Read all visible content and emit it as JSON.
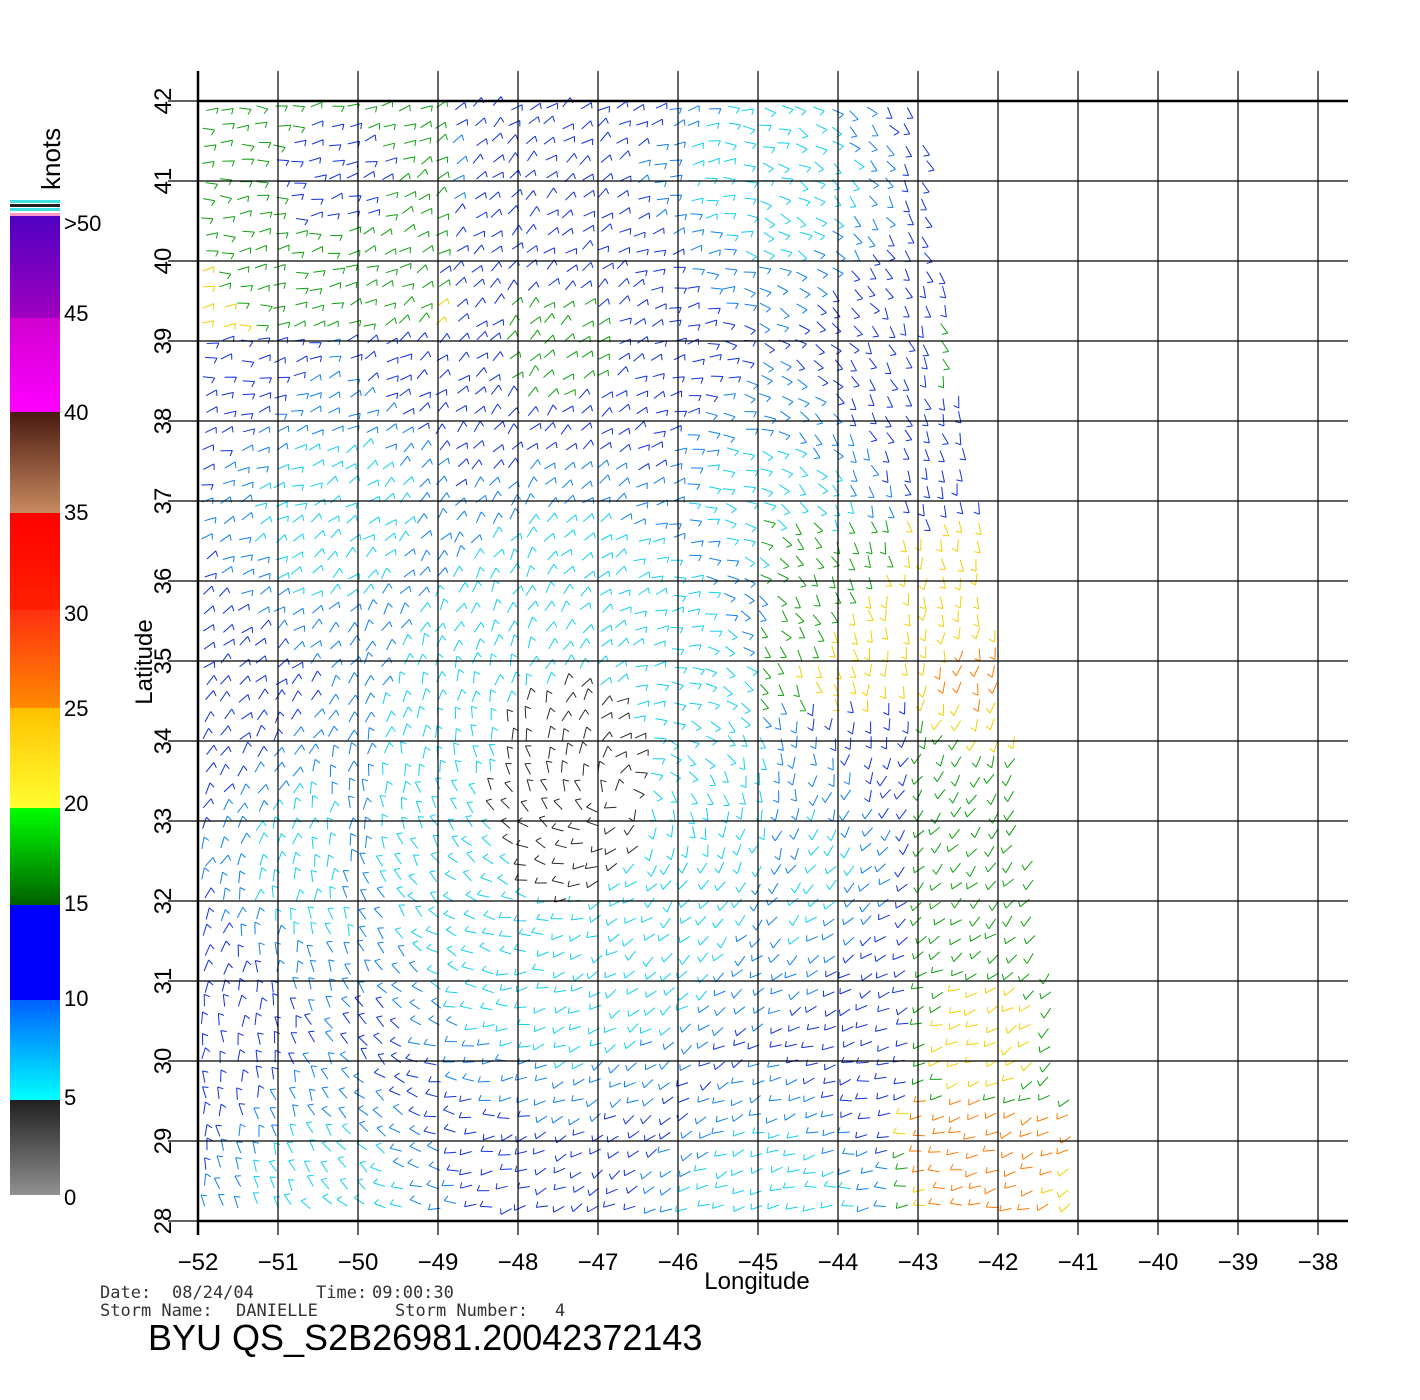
{
  "colorbar": {
    "unit": "knots",
    "labels": [
      ">50",
      "45",
      "40",
      "35",
      "30",
      "25",
      "20",
      "15",
      "10",
      "5",
      "0"
    ],
    "scale_colors": [
      "#7a7a7a",
      "#00e5ff",
      "#0000ff",
      "#00ff00",
      "#ffff00",
      "#ff7a00",
      "#ff0000",
      "#8a5a3c",
      "#ff00ff",
      "#6a00c8"
    ]
  },
  "axes": {
    "x_label": "Longitude",
    "y_label": "Latitude",
    "lon_ticks": [
      "−52",
      "−51",
      "−50",
      "−49",
      "−48",
      "−47",
      "−46",
      "−45",
      "−44",
      "−43",
      "−42",
      "−41",
      "−40",
      "−39",
      "−38"
    ],
    "lat_ticks": [
      "28",
      "29",
      "30",
      "31",
      "32",
      "33",
      "34",
      "35",
      "36",
      "37",
      "38",
      "39",
      "40",
      "41",
      "42"
    ],
    "lon_range": [
      -52,
      -38
    ],
    "lat_range": [
      28,
      42
    ]
  },
  "footer": {
    "date_label": "Date:",
    "date_value": "08/24/04",
    "time_label": "Time:",
    "time_value": "09:00:30",
    "storm_name_label": "Storm  Name:",
    "storm_name_value": "DANIELLE",
    "storm_number_label": "Storm  Number:",
    "storm_number_value": "4",
    "product_id": "BYU  QS_S2B26981.20042372143"
  },
  "swath": {
    "description_colors": {
      "calm": "#202020",
      "light": "#00d8f0",
      "moderate": "#1040e0",
      "fresh": "#10a020",
      "strong": "#f0d000",
      "gale": "#e02000"
    }
  }
}
